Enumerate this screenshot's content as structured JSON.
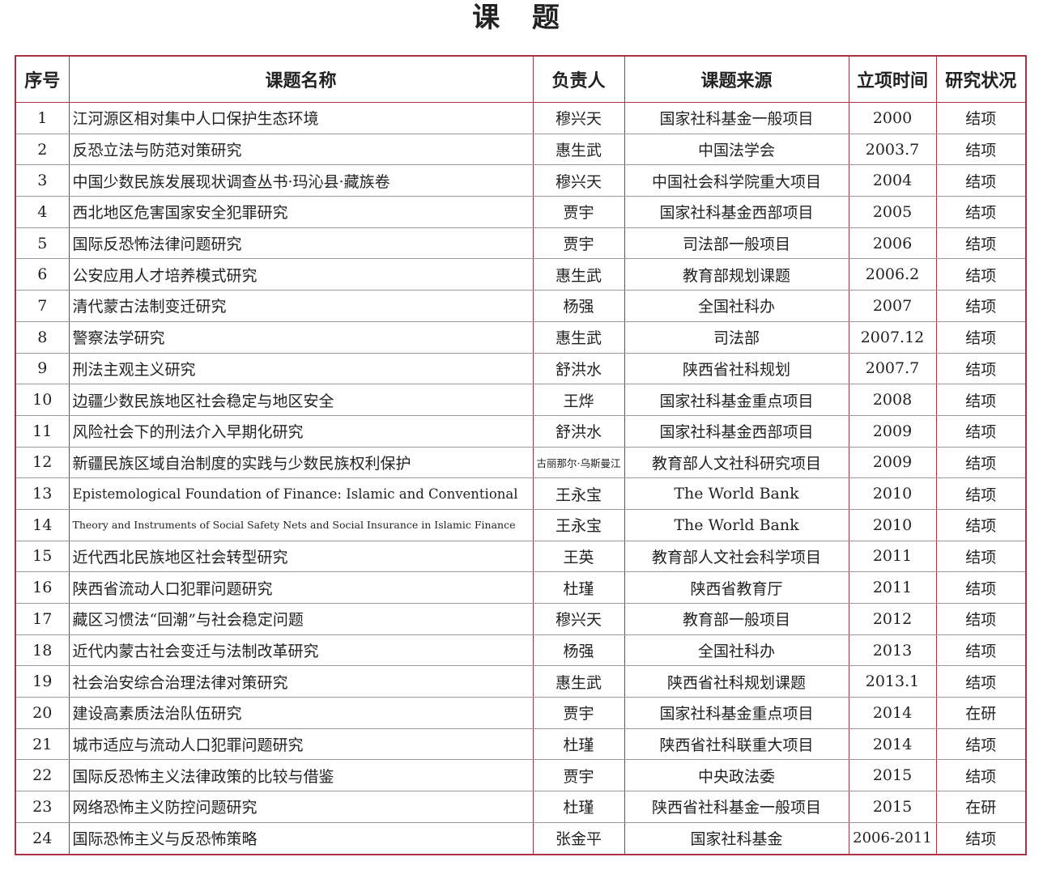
{
  "title": "课 题",
  "table": {
    "headers": [
      "序号",
      "课题名称",
      "负责人",
      "课题来源",
      "立项时间",
      "研究状况"
    ],
    "rows": [
      [
        "1",
        "江河源区相对集中人口保护生态环境",
        "穆兴天",
        "国家社科基金一般项目",
        "2000",
        "结项"
      ],
      [
        "2",
        "反恐立法与防范对策研究",
        "惠生武",
        "中国法学会",
        "2003.7",
        "结项"
      ],
      [
        "3",
        "中国少数民族发展现状调查丛书·玛沁县·藏族卷",
        "穆兴天",
        "中国社会科学院重大项目",
        "2004",
        "结项"
      ],
      [
        "4",
        "西北地区危害国家安全犯罪研究",
        "贾宇",
        "国家社科基金西部项目",
        "2005",
        "结项"
      ],
      [
        "5",
        "国际反恐怖法律问题研究",
        "贾宇",
        "司法部一般项目",
        "2006",
        "结项"
      ],
      [
        "6",
        "公安应用人才培养模式研究",
        "惠生武",
        "教育部规划课题",
        "2006.2",
        "结项"
      ],
      [
        "7",
        "清代蒙古法制变迁研究",
        "杨强",
        "全国社科办",
        "2007",
        "结项"
      ],
      [
        "8",
        "警察法学研究",
        "惠生武",
        "司法部",
        "2007.12",
        "结项"
      ],
      [
        "9",
        "刑法主观主义研究",
        "舒洪水",
        "陕西省社科规划",
        "2007.7",
        "结项"
      ],
      [
        "10",
        "边疆少数民族地区社会稳定与地区安全",
        "王烨",
        "国家社科基金重点项目",
        "2008",
        "结项"
      ],
      [
        "11",
        "风险社会下的刑法介入早期化研究",
        "舒洪水",
        "国家社科基金西部项目",
        "2009",
        "结项"
      ],
      [
        "12",
        "新疆民族区域自治制度的实践与少数民族权利保护",
        "古丽那尔·乌斯曼江",
        "教育部人文社科研究项目",
        "2009",
        "结项"
      ],
      [
        "13",
        "Epistemological Foundation of Finance: Islamic and Conventional",
        "王永宝",
        "The World Bank",
        "2010",
        "结项"
      ],
      [
        "14",
        "Theory and Instruments of Social Safety Nets and Social Insurance in Islamic Finance",
        "王永宝",
        "The World Bank",
        "2010",
        "结项"
      ],
      [
        "15",
        "近代西北民族地区社会转型研究",
        "王英",
        "教育部人文社会科学项目",
        "2011",
        "结项"
      ],
      [
        "16",
        "陕西省流动人口犯罪问题研究",
        "杜瑾",
        "陕西省教育厅",
        "2011",
        "结项"
      ],
      [
        "17",
        "藏区习惯法“回潮”与社会稳定问题",
        "穆兴天",
        "教育部一般项目",
        "2012",
        "结项"
      ],
      [
        "18",
        "近代内蒙古社会变迁与法制改革研究",
        "杨强",
        "全国社科办",
        "2013",
        "结项"
      ],
      [
        "19",
        "社会治安综合治理法律对策研究",
        "惠生武",
        "陕西省社科规划课题",
        "2013.1",
        "结项"
      ],
      [
        "20",
        "建设高素质法治队伍研究",
        "贾宇",
        "国家社科基金重点项目",
        "2014",
        "在研"
      ],
      [
        "21",
        "城市适应与流动人口犯罪问题研究",
        "杜瑾",
        "陕西省社科联重大项目",
        "2014",
        "结项"
      ],
      [
        "22",
        "国际反恐怖主义法律政策的比较与借鉴",
        "贾宇",
        "中央政法委",
        "2015",
        "结项"
      ],
      [
        "23",
        "网络恐怖主义防控问题研究",
        "杜瑾",
        "陕西省社科基金一般项目",
        "2015",
        "在研"
      ],
      [
        "24",
        "国际恐怖主义与反恐怖策略",
        "张金平",
        "国家社科基金",
        "2006-2011",
        "结项"
      ]
    ]
  }
}
